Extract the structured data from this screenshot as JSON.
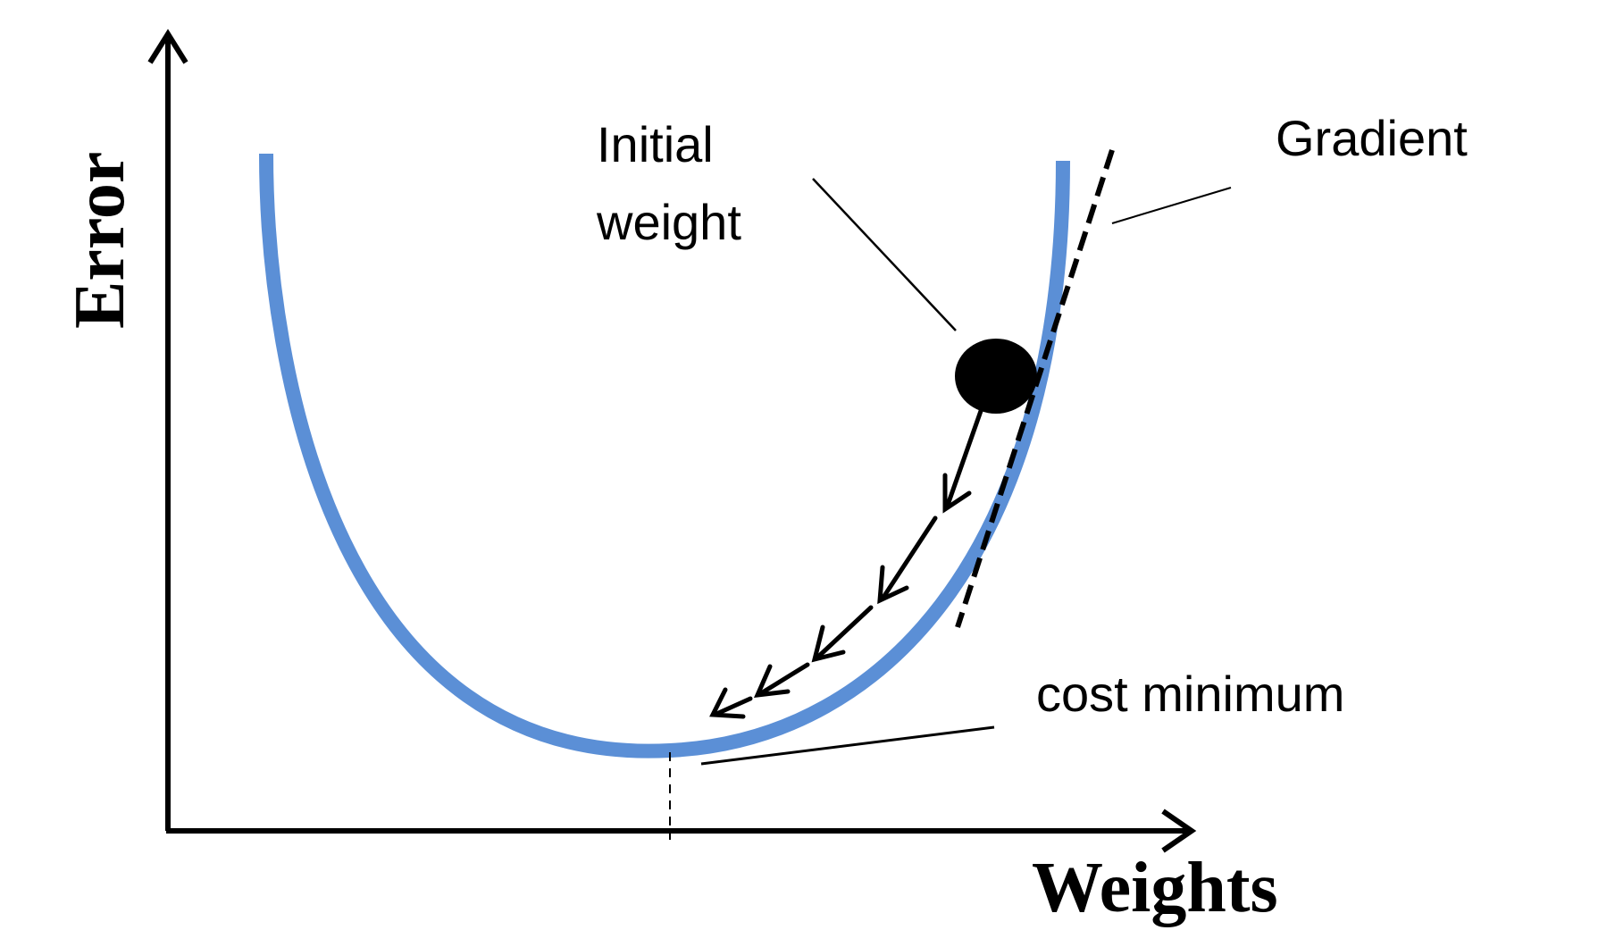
{
  "axes": {
    "x_label": "Weights",
    "y_label": "Error"
  },
  "annotations": {
    "initial_weight_line1": "Initial",
    "initial_weight_line2": "weight",
    "gradient": "Gradient",
    "cost_minimum": "cost minimum"
  },
  "colors": {
    "curve": "#5b8fd6",
    "ink": "#000000",
    "background": "#ffffff"
  }
}
